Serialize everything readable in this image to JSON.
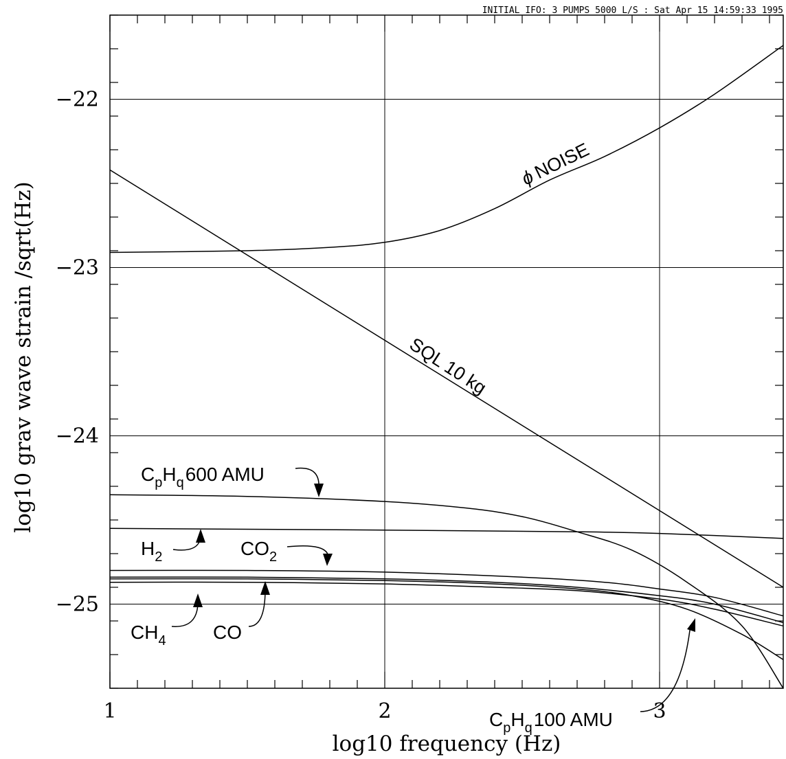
{
  "chart_data": {
    "type": "line",
    "title": "INITIAL IFO: 3 PUMPS 5000 L/S : Sat Apr 15 14:59:33 1995",
    "xlabel": "log10 frequency (Hz)",
    "ylabel": "log10 grav wave strain  /sqrt(Hz)",
    "xlim": [
      1,
      3.45
    ],
    "ylim": [
      -25.5,
      -21.5
    ],
    "x_ticks": [
      1,
      2,
      3
    ],
    "x_tick_labels": [
      "1",
      "2",
      "3"
    ],
    "y_ticks": [
      -22,
      -23,
      -24,
      -25
    ],
    "y_tick_labels": [
      "−22",
      "−23",
      "−24",
      "−25"
    ],
    "x_minor_step": 0.1,
    "y_minor_step": 0.2,
    "grid": true,
    "series": [
      {
        "id": "phi",
        "label": "ϕ NOISE",
        "x": [
          1,
          1.5,
          1.8,
          2.0,
          2.2,
          2.4,
          2.6,
          2.8,
          3.0,
          3.2,
          3.45
        ],
        "y": [
          -22.91,
          -22.9,
          -22.88,
          -22.85,
          -22.78,
          -22.65,
          -22.48,
          -22.34,
          -22.17,
          -21.97,
          -21.68
        ]
      },
      {
        "id": "sql",
        "label": "SQL 10 kg",
        "x": [
          1,
          3.45
        ],
        "y": [
          -22.42,
          -24.9
        ]
      },
      {
        "id": "c600",
        "label": "C_pH_q 600 AMU",
        "x": [
          1,
          1.5,
          2.0,
          2.3,
          2.5,
          2.7,
          2.9,
          3.1,
          3.3,
          3.45
        ],
        "y": [
          -24.35,
          -24.36,
          -24.39,
          -24.43,
          -24.48,
          -24.57,
          -24.68,
          -24.87,
          -25.13,
          -25.5
        ]
      },
      {
        "id": "h2",
        "label": "H_2",
        "x": [
          1,
          2.0,
          2.7,
          3.0,
          3.45
        ],
        "y": [
          -24.55,
          -24.56,
          -24.57,
          -24.58,
          -24.61
        ]
      },
      {
        "id": "co2",
        "label": "CO_2",
        "x": [
          1,
          1.5,
          2.0,
          2.5,
          2.8,
          3.0,
          3.2,
          3.45
        ],
        "y": [
          -24.8,
          -24.8,
          -24.81,
          -24.84,
          -24.87,
          -24.91,
          -24.96,
          -25.07
        ]
      },
      {
        "id": "co",
        "label": "CO",
        "x": [
          1,
          1.5,
          2.0,
          2.4,
          2.7,
          3.0,
          3.2,
          3.45
        ],
        "y": [
          -24.84,
          -24.84,
          -24.85,
          -24.87,
          -24.9,
          -24.95,
          -25.0,
          -25.11
        ]
      },
      {
        "id": "ch4",
        "label": "CH_4",
        "x": [
          1,
          1.5,
          2.0,
          2.4,
          2.7,
          3.0,
          3.2,
          3.45
        ],
        "y": [
          -24.87,
          -24.87,
          -24.88,
          -24.9,
          -24.92,
          -24.97,
          -25.03,
          -25.13
        ]
      },
      {
        "id": "c100",
        "label": "C_pH_q 100 AMU",
        "x": [
          1,
          1.5,
          2.0,
          2.4,
          2.7,
          2.9,
          3.1,
          3.3,
          3.45
        ],
        "y": [
          -24.85,
          -24.85,
          -24.86,
          -24.88,
          -24.91,
          -24.95,
          -25.03,
          -25.18,
          -25.33
        ]
      }
    ],
    "annotations": {
      "phi_noise": {
        "symbol": "ϕ",
        "text": "NOISE"
      },
      "sql": {
        "text": "SQL 10 kg"
      },
      "c600": {
        "c": "C",
        "p": "p",
        "h": "H",
        "q": "q",
        "text": "600 AMU"
      },
      "h2": {
        "base": "H",
        "sub": "2"
      },
      "co2": {
        "base": "CO",
        "sub": "2"
      },
      "ch4": {
        "base": "CH",
        "sub": "4"
      },
      "co": {
        "base": "CO"
      },
      "c100": {
        "c": "C",
        "p": "p",
        "h": "H",
        "q": "q",
        "text": "100 AMU"
      }
    }
  }
}
